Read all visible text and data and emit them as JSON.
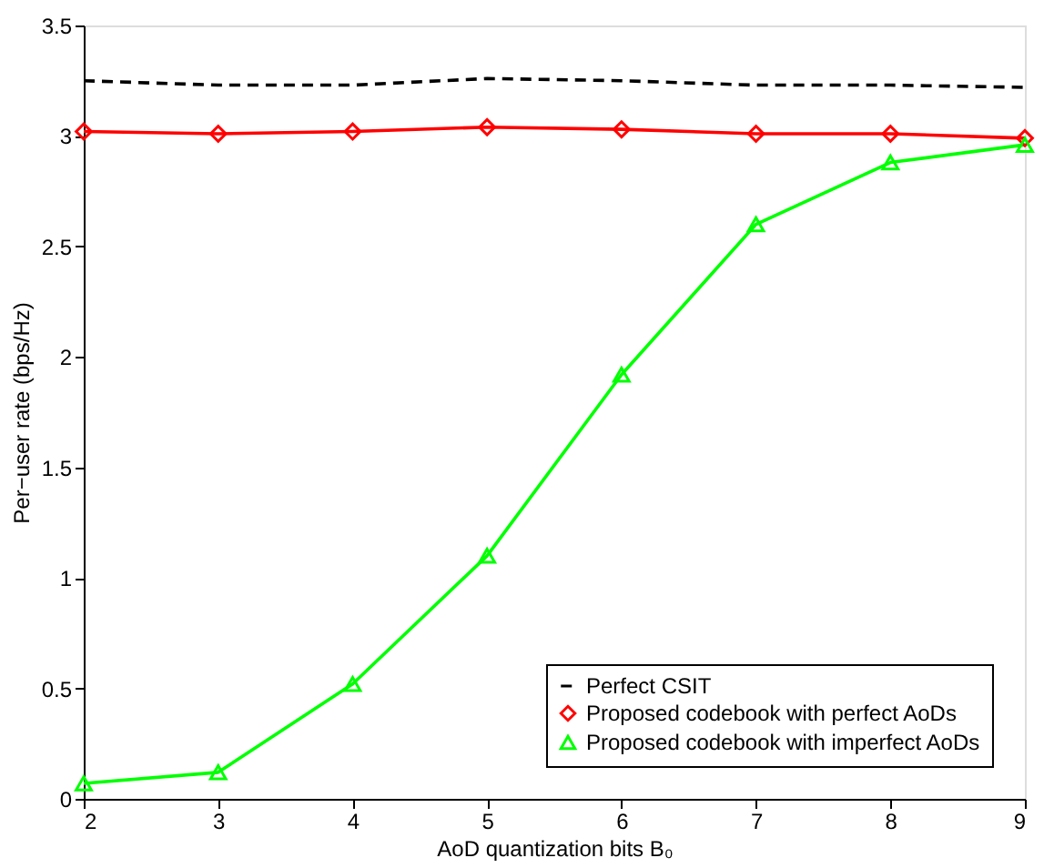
{
  "chart_data": {
    "type": "line",
    "xlabel": "AoD quantization bits B₀",
    "ylabel": "Per−user rate (bps/Hz)",
    "x": [
      2,
      3,
      4,
      5,
      6,
      7,
      8,
      9
    ],
    "xlim": [
      2,
      9
    ],
    "xticks": [
      2,
      3,
      4,
      5,
      6,
      7,
      8,
      9
    ],
    "ylim": [
      0,
      3.5
    ],
    "yticks": [
      0,
      0.5,
      1,
      1.5,
      2,
      2.5,
      3,
      3.5
    ],
    "grid": false,
    "legend": "bottom right",
    "series": [
      {
        "name": "Perfect CSIT",
        "color": "#000000",
        "line_style": "dashed",
        "marker": "none",
        "values": [
          3.25,
          3.23,
          3.23,
          3.26,
          3.25,
          3.23,
          3.23,
          3.22
        ]
      },
      {
        "name": "Proposed codebook with perfect AoDs",
        "color": "#ff0000",
        "line_style": "solid",
        "marker": "diamond",
        "values": [
          3.02,
          3.01,
          3.02,
          3.04,
          3.03,
          3.01,
          3.01,
          2.99
        ]
      },
      {
        "name": "Proposed codebook with imperfect AoDs",
        "color": "#00ff00",
        "line_style": "solid",
        "marker": "triangle",
        "values": [
          0.07,
          0.12,
          0.52,
          1.1,
          1.92,
          2.6,
          2.88,
          2.96
        ]
      }
    ]
  }
}
